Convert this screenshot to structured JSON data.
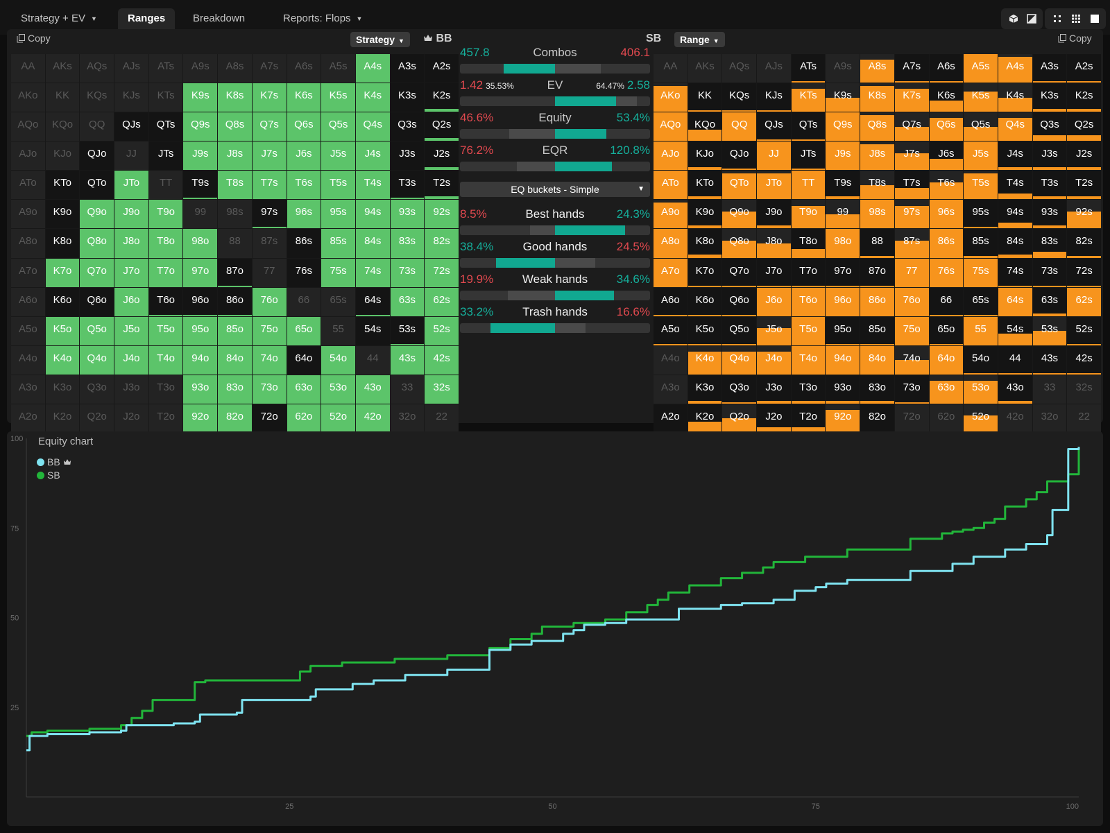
{
  "tabs": [
    {
      "label": "Strategy + EV",
      "dropdown": true,
      "active": false
    },
    {
      "label": "Ranges",
      "dropdown": false,
      "active": true
    },
    {
      "label": "Breakdown",
      "dropdown": false,
      "active": false
    },
    {
      "label": "Reports: Flops",
      "dropdown": true,
      "active": false
    }
  ],
  "toolbar_icons": [
    "cube-icon",
    "contrast-icon",
    "scatter-icon",
    "grid-icon",
    "square-icon"
  ],
  "left": {
    "copy_label": "Copy",
    "mode_label": "Strategy",
    "player_label": "BB",
    "player_icon": "crown-icon"
  },
  "right": {
    "copy_label": "Copy",
    "mode_label": "Range",
    "player_label": "SB"
  },
  "hand_grid": [
    [
      "AA",
      "AKs",
      "AQs",
      "AJs",
      "ATs",
      "A9s",
      "A8s",
      "A7s",
      "A6s",
      "A5s",
      "A4s",
      "A3s",
      "A2s"
    ],
    [
      "AKo",
      "KK",
      "KQs",
      "KJs",
      "KTs",
      "K9s",
      "K8s",
      "K7s",
      "K6s",
      "K5s",
      "K4s",
      "K3s",
      "K2s"
    ],
    [
      "AQo",
      "KQo",
      "QQ",
      "QJs",
      "QTs",
      "Q9s",
      "Q8s",
      "Q7s",
      "Q6s",
      "Q5s",
      "Q4s",
      "Q3s",
      "Q2s"
    ],
    [
      "AJo",
      "KJo",
      "QJo",
      "JJ",
      "JTs",
      "J9s",
      "J8s",
      "J7s",
      "J6s",
      "J5s",
      "J4s",
      "J3s",
      "J2s"
    ],
    [
      "ATo",
      "KTo",
      "QTo",
      "JTo",
      "TT",
      "T9s",
      "T8s",
      "T7s",
      "T6s",
      "T5s",
      "T4s",
      "T3s",
      "T2s"
    ],
    [
      "A9o",
      "K9o",
      "Q9o",
      "J9o",
      "T9o",
      "99",
      "98s",
      "97s",
      "96s",
      "95s",
      "94s",
      "93s",
      "92s"
    ],
    [
      "A8o",
      "K8o",
      "Q8o",
      "J8o",
      "T8o",
      "98o",
      "88",
      "87s",
      "86s",
      "85s",
      "84s",
      "83s",
      "82s"
    ],
    [
      "A7o",
      "K7o",
      "Q7o",
      "J7o",
      "T7o",
      "97o",
      "87o",
      "77",
      "76s",
      "75s",
      "74s",
      "73s",
      "72s"
    ],
    [
      "A6o",
      "K6o",
      "Q6o",
      "J6o",
      "T6o",
      "96o",
      "86o",
      "76o",
      "66",
      "65s",
      "64s",
      "63s",
      "62s"
    ],
    [
      "A5o",
      "K5o",
      "Q5o",
      "J5o",
      "T5o",
      "95o",
      "85o",
      "75o",
      "65o",
      "55",
      "54s",
      "53s",
      "52s"
    ],
    [
      "A4o",
      "K4o",
      "Q4o",
      "J4o",
      "T4o",
      "94o",
      "84o",
      "74o",
      "64o",
      "54o",
      "44",
      "43s",
      "42s"
    ],
    [
      "A3o",
      "K3o",
      "Q3o",
      "J3o",
      "T3o",
      "93o",
      "83o",
      "73o",
      "63o",
      "53o",
      "43o",
      "33",
      "32s"
    ],
    [
      "A2o",
      "K2o",
      "Q2o",
      "J2o",
      "T2o",
      "92o",
      "82o",
      "72o",
      "62o",
      "52o",
      "42o",
      "32o",
      "22"
    ]
  ],
  "bb_fill": [
    [
      -1,
      -1,
      -1,
      -1,
      -1,
      -1,
      -1,
      -1,
      -1,
      -1,
      1,
      0,
      0
    ],
    [
      -1,
      -1,
      -1,
      -1,
      -1,
      1,
      1,
      1,
      1,
      1,
      1,
      0,
      0.1
    ],
    [
      -1,
      -1,
      -1,
      0,
      0,
      1,
      1,
      1,
      1,
      1,
      1,
      0,
      0.1
    ],
    [
      -1,
      -1,
      0,
      -1,
      0,
      1,
      1,
      1,
      1,
      1,
      1,
      0,
      0.1
    ],
    [
      -1,
      0,
      0,
      1,
      -1,
      0.05,
      1,
      1,
      1,
      1,
      1,
      0.05,
      0.1
    ],
    [
      -1,
      0,
      1,
      1,
      1,
      -1,
      -1,
      0.05,
      1,
      1,
      1,
      1,
      1
    ],
    [
      -1,
      0,
      1,
      1,
      1,
      1,
      -1,
      -1,
      0,
      1,
      1,
      1,
      1
    ],
    [
      -1,
      1,
      1,
      1,
      1,
      1,
      0.05,
      -1,
      0,
      1,
      1,
      1,
      1
    ],
    [
      -1,
      0,
      0,
      1,
      0.05,
      0.05,
      0.05,
      1,
      -1,
      -1,
      0.05,
      1,
      1
    ],
    [
      -1,
      1,
      1,
      1,
      1,
      1,
      1,
      1,
      1,
      -1,
      0,
      0.05,
      1
    ],
    [
      -1,
      1,
      1,
      1,
      1,
      1,
      1,
      1,
      0,
      1,
      -1,
      1,
      1
    ],
    [
      -1,
      -1,
      -1,
      -1,
      -1,
      1,
      1,
      1,
      1,
      1,
      1,
      -1,
      1
    ],
    [
      -1,
      -1,
      -1,
      -1,
      -1,
      1,
      1,
      0.05,
      1,
      1,
      1,
      -1,
      -1
    ]
  ],
  "sb_fill": [
    [
      -1,
      -1,
      -1,
      -1,
      0.05,
      -1,
      0.8,
      0.05,
      0.05,
      1,
      0.9,
      0.05,
      0.05
    ],
    [
      0.9,
      0.05,
      0.05,
      0.05,
      0.8,
      0.5,
      0.9,
      0.8,
      0.4,
      0.7,
      0.5,
      0.1,
      0.1
    ],
    [
      1,
      0.4,
      1,
      0.05,
      0.05,
      1,
      0.9,
      0.5,
      0.8,
      0.5,
      0.8,
      0.2,
      0.2
    ],
    [
      1,
      0.1,
      0.05,
      1,
      0.05,
      1,
      0.9,
      0.6,
      0.4,
      1,
      0.1,
      0.1,
      0.1
    ],
    [
      1,
      0.1,
      0.9,
      0.9,
      1,
      0.1,
      0.5,
      0.4,
      0.6,
      0.9,
      0.2,
      0.1,
      0.1
    ],
    [
      0.9,
      0.1,
      0.6,
      0.1,
      0.8,
      0.5,
      1,
      0.8,
      1,
      0.05,
      0.2,
      0.1,
      0.6
    ],
    [
      1,
      0.1,
      0.6,
      0.5,
      0.3,
      1,
      0.05,
      0.6,
      1,
      0.05,
      0.1,
      0.2,
      0.05
    ],
    [
      1,
      0.05,
      0.05,
      0.05,
      0.05,
      0.05,
      0.05,
      1,
      1,
      1,
      0.05,
      0.05,
      0.05
    ],
    [
      0.05,
      0.05,
      0.05,
      1,
      1,
      1,
      1,
      1,
      0.05,
      0.05,
      1,
      0.1,
      1
    ],
    [
      0.05,
      0.05,
      0.05,
      0.6,
      1,
      0.05,
      0.05,
      1,
      0.05,
      1,
      0.4,
      0.5,
      0.05
    ],
    [
      -1,
      0.8,
      0.8,
      0.8,
      1,
      1,
      1,
      0.5,
      1,
      0.05,
      0.05,
      0.05,
      0.05
    ],
    [
      -1,
      0.1,
      0.05,
      0.1,
      0.1,
      0.1,
      0.1,
      0.05,
      0.8,
      0.8,
      0.1,
      -1,
      -1
    ],
    [
      0.05,
      0.4,
      0.5,
      0.2,
      0.2,
      0.8,
      0.05,
      -1,
      -1,
      0.6,
      -1,
      -1,
      -1
    ]
  ],
  "bb_color": "#5cc46a",
  "sb_color": "#f7941d",
  "stats": [
    {
      "key": "combos",
      "label": "Combos",
      "left": "457.8",
      "left_sub": "",
      "right": "406.1",
      "left_color": "#15b09c",
      "right_color": "#e2494f",
      "bar_teal": [
        0.23,
        0.5
      ],
      "bar_gray": [
        0.5,
        0.74
      ]
    },
    {
      "key": "ev",
      "label": "EV",
      "left": "1.42",
      "left_sub": "35.53%",
      "right": "2.58",
      "right_sub": "64.47%",
      "left_color": "#e2494f",
      "right_color": "#15b09c",
      "bar_teal": [
        0.5,
        0.82
      ],
      "bar_gray": [
        0.82,
        0.93
      ]
    },
    {
      "key": "equity",
      "label": "Equity",
      "left": "46.6%",
      "left_sub": "",
      "right": "53.4%",
      "left_color": "#e2494f",
      "right_color": "#15b09c",
      "bar_teal": [
        0.5,
        0.77
      ],
      "bar_gray": [
        0.26,
        0.5
      ]
    },
    {
      "key": "eqr",
      "label": "EQR",
      "left": "76.2%",
      "left_sub": "",
      "right": "120.8%",
      "left_color": "#e2494f",
      "right_color": "#15b09c",
      "bar_teal": [
        0.5,
        0.8
      ],
      "bar_gray": [
        0.3,
        0.5
      ]
    }
  ],
  "eq_bucket_dropdown": "EQ buckets - Simple",
  "buckets": [
    {
      "label": "Best hands",
      "left": "8.5%",
      "right": "24.3%",
      "left_color": "#e2494f",
      "right_color": "#15b09c",
      "bar_teal": [
        0.5,
        0.87
      ],
      "bar_gray": [
        0.37,
        0.5
      ]
    },
    {
      "label": "Good hands",
      "left": "38.4%",
      "right": "24.5%",
      "left_color": "#15b09c",
      "right_color": "#e2494f",
      "bar_teal": [
        0.19,
        0.5
      ],
      "bar_gray": [
        0.5,
        0.71
      ]
    },
    {
      "label": "Weak hands",
      "left": "19.9%",
      "right": "34.6%",
      "left_color": "#e2494f",
      "right_color": "#15b09c",
      "bar_teal": [
        0.5,
        0.81
      ],
      "bar_gray": [
        0.25,
        0.5
      ]
    },
    {
      "label": "Trash hands",
      "left": "33.2%",
      "right": "16.6%",
      "left_color": "#15b09c",
      "right_color": "#e2494f",
      "bar_teal": [
        0.16,
        0.5
      ],
      "bar_gray": [
        0.5,
        0.66
      ]
    }
  ],
  "chart_title": "Equity chart",
  "chart_data": {
    "type": "line",
    "xlim": [
      0,
      100
    ],
    "ylim": [
      0,
      100
    ],
    "x_ticks": [
      25,
      50,
      75,
      100
    ],
    "y_ticks": [
      25,
      50,
      75,
      100
    ],
    "legend_position": "top-left",
    "series": [
      {
        "name": "BB",
        "color": "#7fe3f0",
        "crown": true,
        "x": [
          0,
          0.3,
          2,
          6,
          9,
          9.5,
          14,
          16,
          16.5,
          20,
          20.5,
          27,
          27.5,
          31,
          33,
          36,
          40,
          44,
          46,
          48,
          51,
          52,
          53,
          55,
          57,
          62,
          66,
          68,
          71,
          73,
          75,
          76,
          78,
          84,
          88,
          90,
          93,
          95,
          97,
          97.5,
          99,
          100
        ],
        "y": [
          13,
          17,
          17.5,
          18,
          18.5,
          20,
          20.5,
          21,
          23,
          23.5,
          27,
          28,
          30,
          31.5,
          32.5,
          34,
          35.5,
          41,
          42.5,
          43.5,
          45.5,
          46.5,
          48,
          48.5,
          49.5,
          52.5,
          53.5,
          54,
          55,
          57.5,
          58.5,
          59.5,
          60.5,
          63,
          65,
          67,
          69,
          70.5,
          73,
          80,
          97,
          97.6
        ]
      },
      {
        "name": "SB",
        "color": "#22b53a",
        "x": [
          0,
          0.5,
          2,
          6,
          9,
          10,
          11,
          12,
          16,
          17,
          26,
          27,
          30,
          35,
          40,
          44,
          46,
          48,
          49,
          52,
          55,
          57,
          59,
          60,
          61,
          63,
          66,
          68,
          70,
          71,
          74,
          78,
          84,
          87,
          88,
          89,
          90,
          91,
          92,
          93,
          95,
          96,
          97,
          99,
          100
        ],
        "y": [
          17,
          18,
          18.5,
          19,
          20,
          22,
          24,
          27,
          32,
          32.5,
          35,
          36.5,
          37.5,
          38.5,
          39.5,
          41.5,
          44,
          45.5,
          47.5,
          48.5,
          49.5,
          51.5,
          53.5,
          55,
          57,
          59,
          61,
          62.5,
          64,
          65.5,
          67,
          69,
          72,
          73.5,
          74,
          74.5,
          75,
          76.5,
          77.5,
          81,
          83,
          85,
          88,
          90,
          97.6
        ]
      }
    ]
  }
}
